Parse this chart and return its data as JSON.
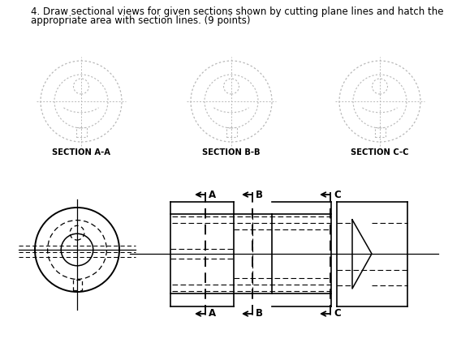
{
  "title_line1": "4. Draw sectional views for given sections shown by cutting plane lines and hatch the",
  "title_line2": "appropriate area with section lines. (9 points)",
  "title_fontsize": 8.5,
  "section_labels": [
    "SECTION A-A",
    "SECTION B-B",
    "SECTION C-C"
  ],
  "cutting_labels": [
    "A",
    "B",
    "C"
  ],
  "bg_color": "#ffffff",
  "lc": "#000000",
  "gc": "#b8b8b8"
}
